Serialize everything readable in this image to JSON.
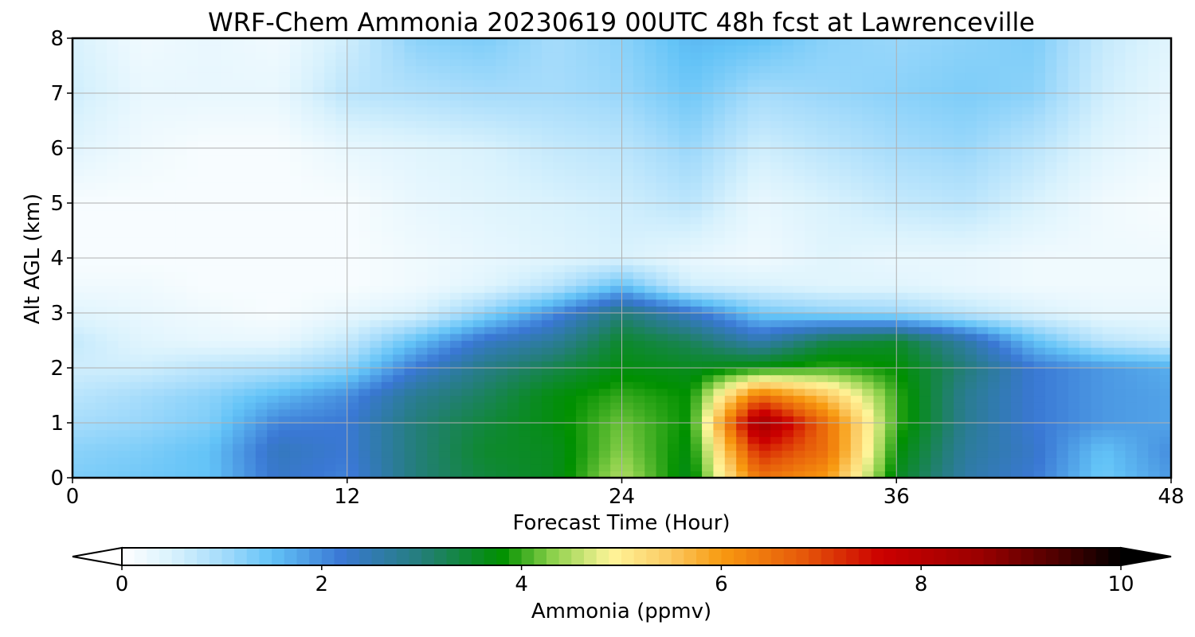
{
  "chart_data": {
    "type": "heatmap",
    "title": "WRF-Chem Ammonia  20230619 00UTC 48h fcst at Lawrenceville",
    "xlabel": "Forecast Time (Hour)",
    "ylabel": "Alt AGL (km)",
    "xlim": [
      0,
      48
    ],
    "ylim": [
      0,
      8
    ],
    "x_ticks": [
      0,
      12,
      24,
      36,
      48
    ],
    "y_ticks": [
      0,
      1,
      2,
      3,
      4,
      5,
      6,
      7,
      8
    ],
    "grid": true,
    "colorbar": {
      "label": "Ammonia  (ppmv)",
      "vmin": 0,
      "vmax": 10,
      "ticks": [
        0,
        2,
        4,
        6,
        8,
        10
      ],
      "extend": "both",
      "orientation": "horizontal",
      "position": "bottom"
    },
    "x": [
      0,
      3,
      6,
      9,
      12,
      15,
      18,
      21,
      24,
      27,
      30,
      33,
      36,
      39,
      42,
      45,
      48
    ],
    "y": [
      0,
      0.5,
      1,
      1.5,
      2,
      2.5,
      3,
      3.5,
      4,
      5,
      6,
      7,
      8
    ],
    "z": [
      [
        1.3,
        1.4,
        1.5,
        2.3,
        2.1,
        3.0,
        3.4,
        3.6,
        4.5,
        3.6,
        6.5,
        6.0,
        3.6,
        2.6,
        2.2,
        1.4,
        1.9
      ],
      [
        1.2,
        1.3,
        1.5,
        2.4,
        2.2,
        3.0,
        3.5,
        3.6,
        4.3,
        3.7,
        7.3,
        6.5,
        3.8,
        2.7,
        2.3,
        1.5,
        2.0
      ],
      [
        1.0,
        1.1,
        1.3,
        2.1,
        2.2,
        3.0,
        3.4,
        3.7,
        4.2,
        3.8,
        8.5,
        6.5,
        4.0,
        2.8,
        2.2,
        1.9,
        1.8
      ],
      [
        0.8,
        1.0,
        1.2,
        1.6,
        2.0,
        2.8,
        3.2,
        3.7,
        4.0,
        3.8,
        6.5,
        5.5,
        4.0,
        2.8,
        2.2,
        1.9,
        1.8
      ],
      [
        0.6,
        0.6,
        0.8,
        0.9,
        1.2,
        2.2,
        2.9,
        3.3,
        3.7,
        3.6,
        3.8,
        4.0,
        3.8,
        3.0,
        2.2,
        1.9,
        1.7
      ],
      [
        0.7,
        0.4,
        0.3,
        0.3,
        0.7,
        1.5,
        2.3,
        2.7,
        3.5,
        3.2,
        2.5,
        3.3,
        3.5,
        2.6,
        1.5,
        0.8,
        0.6
      ],
      [
        0.4,
        0.3,
        0.2,
        0.1,
        0.3,
        0.5,
        1.2,
        2.0,
        3.0,
        2.3,
        1.4,
        1.2,
        1.1,
        0.8,
        0.5,
        0.3,
        0.3
      ],
      [
        0.2,
        0.2,
        0.1,
        0.1,
        0.1,
        0.2,
        0.4,
        0.8,
        1.5,
        0.6,
        0.5,
        0.4,
        0.4,
        0.3,
        0.2,
        0.2,
        0.2
      ],
      [
        0.1,
        0.1,
        0.1,
        0.1,
        0.1,
        0.2,
        0.3,
        0.4,
        0.5,
        0.3,
        0.2,
        0.4,
        0.3,
        0.3,
        0.2,
        0.2,
        0.2
      ],
      [
        0.1,
        0.1,
        0.1,
        0.1,
        0.1,
        0.3,
        0.4,
        0.5,
        0.6,
        0.8,
        0.3,
        0.5,
        0.7,
        0.8,
        0.5,
        0.2,
        0.1
      ],
      [
        0.4,
        0.2,
        0.1,
        0.1,
        0.3,
        0.4,
        0.5,
        0.7,
        0.8,
        1.1,
        0.6,
        0.8,
        1.0,
        1.1,
        0.8,
        0.4,
        0.2
      ],
      [
        0.6,
        0.3,
        0.3,
        0.3,
        0.8,
        0.9,
        1.0,
        1.0,
        1.1,
        1.4,
        1.0,
        1.1,
        1.2,
        1.3,
        1.2,
        0.6,
        0.3
      ],
      [
        0.5,
        0.2,
        0.3,
        0.2,
        0.6,
        1.2,
        1.3,
        1.0,
        1.2,
        1.6,
        1.5,
        1.2,
        1.1,
        1.2,
        1.3,
        0.7,
        0.4
      ]
    ]
  }
}
